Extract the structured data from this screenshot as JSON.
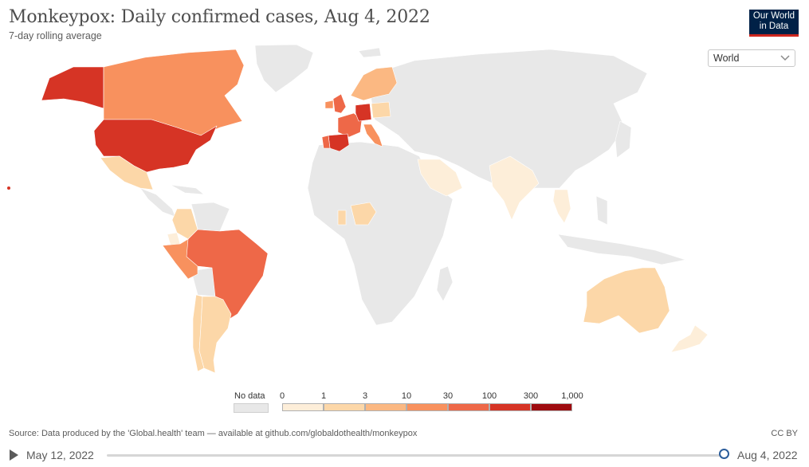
{
  "header": {
    "title": "Monkeypox: Daily confirmed cases, Aug 4, 2022",
    "subtitle": "7-day rolling average"
  },
  "logo": {
    "line1": "Our World",
    "line2": "in Data"
  },
  "region_select": {
    "value": "World"
  },
  "legend": {
    "no_data_label": "No data",
    "bins": [
      "0",
      "1",
      "3",
      "10",
      "30",
      "100",
      "300",
      "1,000"
    ],
    "colors": [
      "#fdeed9",
      "#fcd7a8",
      "#fbb882",
      "#f8915e",
      "#ee6848",
      "#d63425",
      "#9e0b0f"
    ],
    "no_data_color": "#e8e8e8"
  },
  "map": {
    "countries": [
      {
        "name": "Alaska",
        "color": "#d63425"
      },
      {
        "name": "Canada",
        "color": "#f8915e"
      },
      {
        "name": "United States",
        "color": "#d63425"
      },
      {
        "name": "Mexico",
        "color": "#fcd7a8"
      },
      {
        "name": "Colombia",
        "color": "#fcd7a8"
      },
      {
        "name": "Ecuador",
        "color": "#fdeed9"
      },
      {
        "name": "Peru",
        "color": "#f8915e"
      },
      {
        "name": "Brazil",
        "color": "#ee6848"
      },
      {
        "name": "Argentina",
        "color": "#fcd7a8"
      },
      {
        "name": "Chile",
        "color": "#fcd7a8"
      },
      {
        "name": "United Kingdom",
        "color": "#ee6848"
      },
      {
        "name": "Ireland",
        "color": "#f8915e"
      },
      {
        "name": "France",
        "color": "#ee6848"
      },
      {
        "name": "Spain",
        "color": "#d63425"
      },
      {
        "name": "Portugal",
        "color": "#ee6848"
      },
      {
        "name": "Germany",
        "color": "#d63425"
      },
      {
        "name": "Italy",
        "color": "#f8915e"
      },
      {
        "name": "Scandinavia",
        "color": "#fbb882"
      },
      {
        "name": "Poland",
        "color": "#fcd7a8"
      },
      {
        "name": "Nigeria",
        "color": "#fcd7a8"
      },
      {
        "name": "Ghana",
        "color": "#fcd7a8"
      },
      {
        "name": "Saudi Arabia",
        "color": "#fdeed9"
      },
      {
        "name": "India",
        "color": "#fdeed9"
      },
      {
        "name": "Thailand",
        "color": "#fdeed9"
      },
      {
        "name": "Australia",
        "color": "#fcd7a8"
      },
      {
        "name": "New Zealand",
        "color": "#fdeed9"
      }
    ]
  },
  "footer": {
    "source": "Source: Data produced by the 'Global.health' team — available at github.com/globaldothealth/monkeypox",
    "license": "CC BY"
  },
  "timeline": {
    "start_date": "May 12, 2022",
    "end_date": "Aug 4, 2022",
    "position": 1.0
  }
}
